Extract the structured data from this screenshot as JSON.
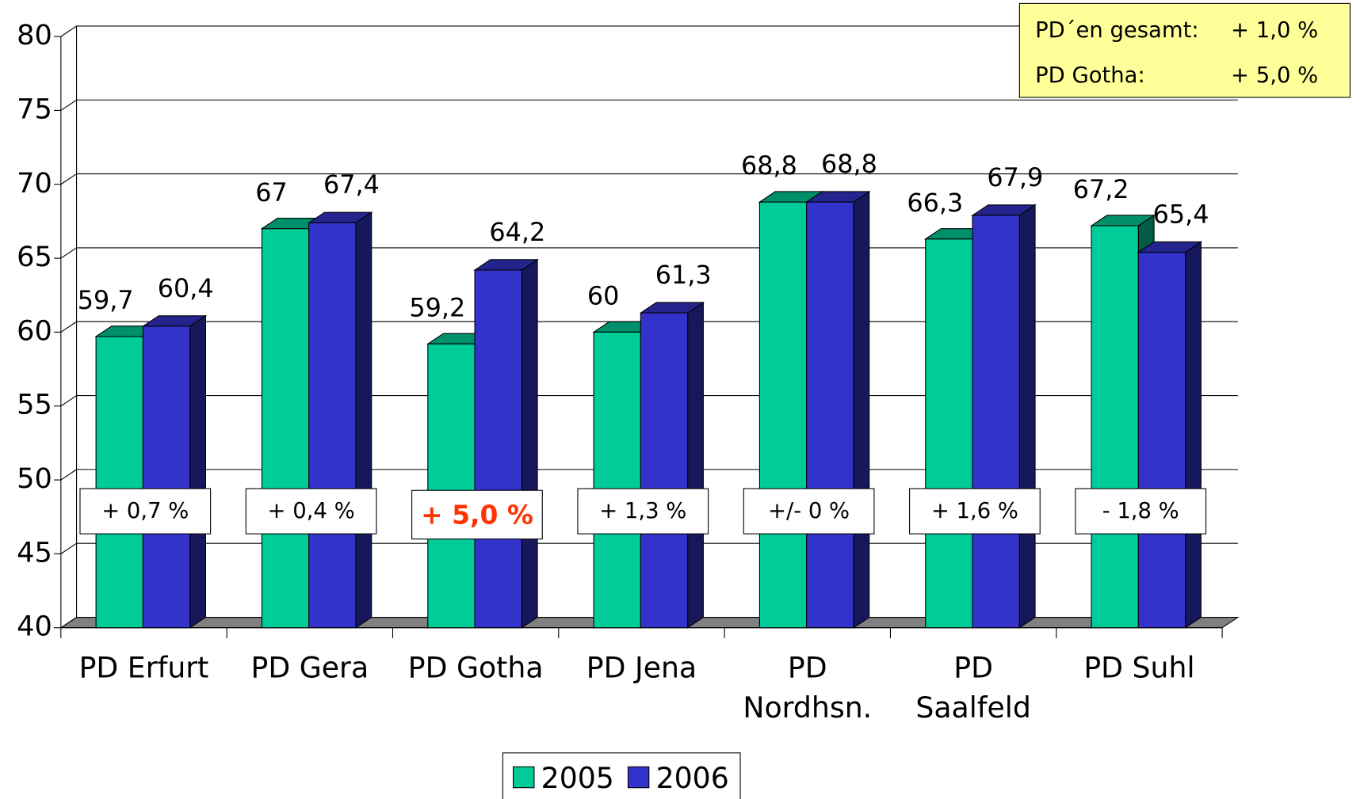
{
  "chart_data": {
    "type": "bar3d",
    "categories": [
      "PD Erfurt",
      "PD Gera",
      "PD Gotha",
      "PD Jena",
      "PD\nNordhsn.",
      "PD\nSaalfeld",
      "PD Suhl"
    ],
    "series": [
      {
        "name": "2005",
        "color": "#00cc99",
        "values": [
          59.7,
          67,
          59.2,
          60,
          68.8,
          66.3,
          67.2
        ],
        "value_labels": [
          "59,7",
          "67",
          "59,2",
          "60",
          "68,8",
          "66,3",
          "67,2"
        ]
      },
      {
        "name": "2006",
        "color": "#3333cc",
        "values": [
          60.4,
          67.4,
          64.2,
          61.3,
          68.8,
          67.9,
          65.4
        ],
        "value_labels": [
          "60,4",
          "67,4",
          "64,2",
          "61,3",
          "68,8",
          "67,9",
          "65,4"
        ]
      }
    ],
    "ylim": [
      40,
      80
    ],
    "yticks": [
      40,
      45,
      50,
      55,
      60,
      65,
      70,
      75,
      80
    ],
    "grid": true,
    "annotations": [
      "+ 0,7 %",
      "+ 0,4 %",
      "+ 5,0 %",
      "+ 1,3 %",
      "+/- 0 %",
      "+ 1,6 %",
      "- 1,8 %"
    ],
    "highlight_index": 2,
    "highlight_color": "#ff3300",
    "info_box": [
      [
        "PD´en gesamt:",
        "+ 1,0  %"
      ],
      [
        "PD Gotha:",
        "+ 5,0  %"
      ]
    ],
    "info_box_color": "#ffff99"
  }
}
